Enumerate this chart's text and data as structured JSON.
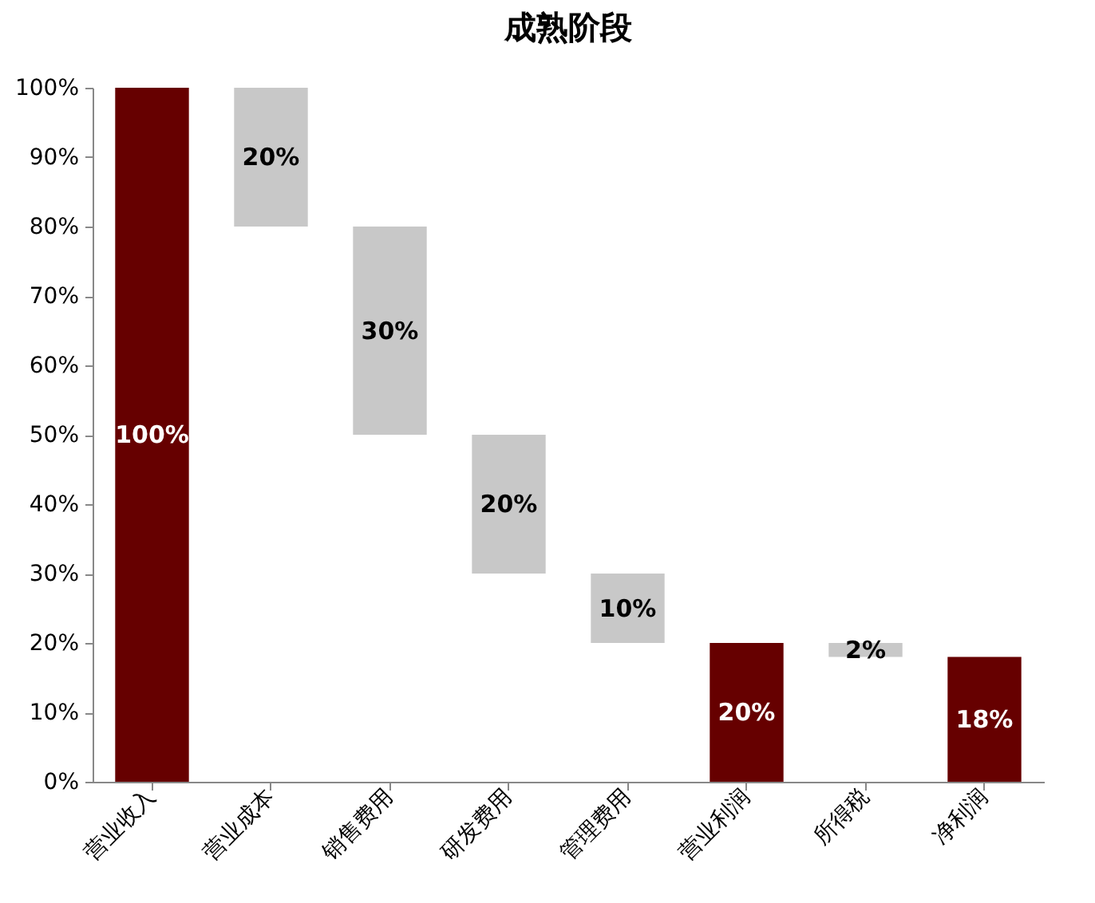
{
  "chart_data": {
    "type": "bar",
    "title": "成熟阶段",
    "categories": [
      "营业收入",
      "营业成本",
      "销售费用",
      "研发费用",
      "管理费用",
      "营业利润",
      "所得税",
      "净利润"
    ],
    "values": [
      100,
      20,
      30,
      20,
      10,
      20,
      2,
      18
    ],
    "base": [
      0,
      80,
      50,
      30,
      20,
      0,
      18,
      0
    ],
    "colors": [
      "#660000",
      "#c8c8c8",
      "#c8c8c8",
      "#c8c8c8",
      "#c8c8c8",
      "#660000",
      "#c8c8c8",
      "#660000"
    ],
    "value_labels": [
      "100%",
      "20%",
      "30%",
      "20%",
      "10%",
      "20%",
      "2%",
      "18%"
    ],
    "ylim": [
      0,
      100
    ],
    "yticks": [
      {
        "value": 0,
        "label": "0%"
      },
      {
        "value": 10,
        "label": "10%"
      },
      {
        "value": 20,
        "label": "20%"
      },
      {
        "value": 30,
        "label": "30%"
      },
      {
        "value": 40,
        "label": "40%"
      },
      {
        "value": 50,
        "label": "50%"
      },
      {
        "value": 60,
        "label": "60%"
      },
      {
        "value": 70,
        "label": "70%"
      },
      {
        "value": 80,
        "label": "80%"
      },
      {
        "value": 90,
        "label": "90%"
      },
      {
        "value": 100,
        "label": "100%"
      }
    ],
    "grid": false
  }
}
